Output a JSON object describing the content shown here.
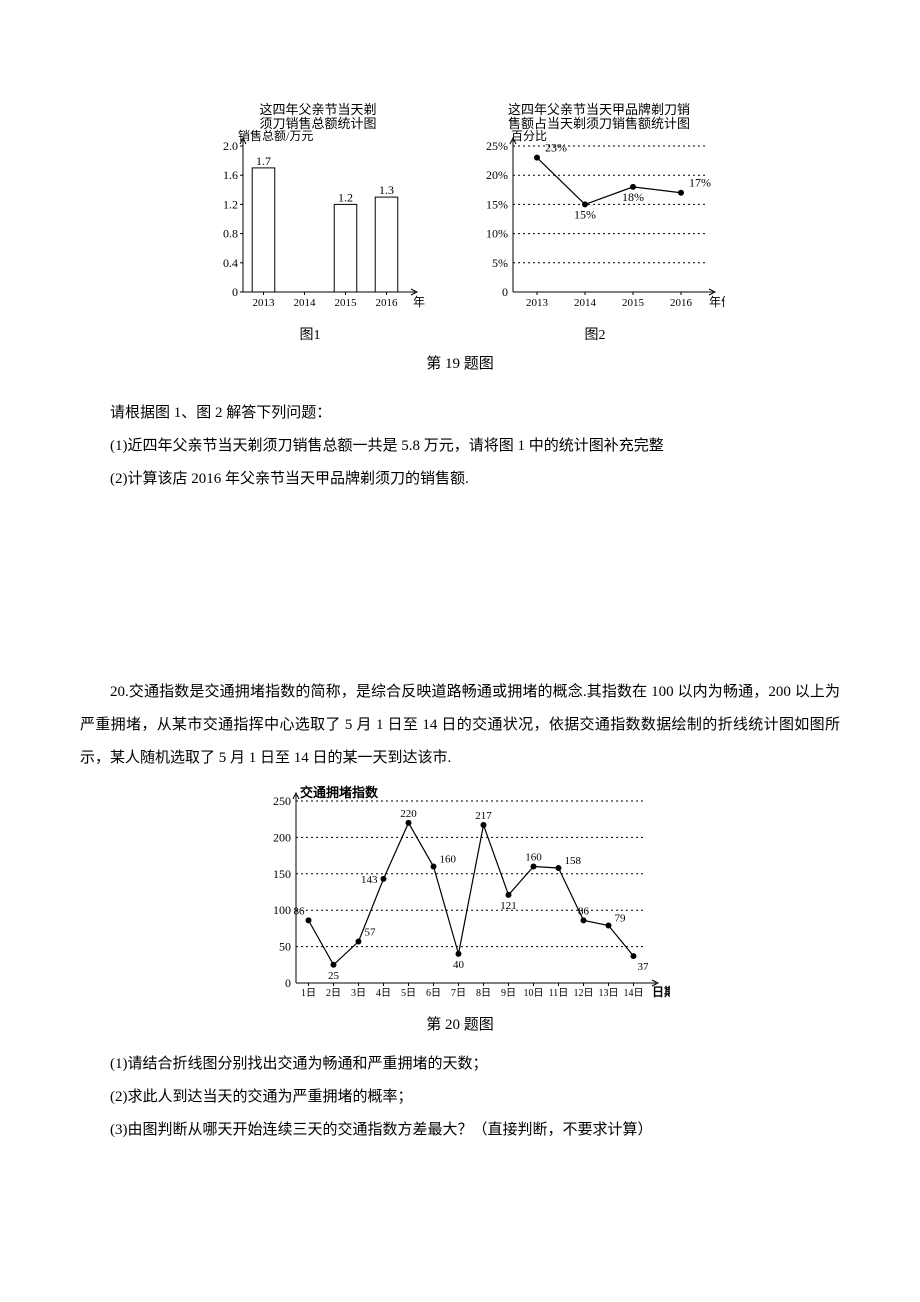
{
  "q19": {
    "barChart": {
      "title": "这四年父亲节当天剃\n须刀销售总额统计图",
      "yLabel": "销售总额/万元",
      "xLabel": "年份",
      "yTicks": [
        0,
        0.4,
        0.8,
        1.2,
        1.6,
        2.0
      ],
      "categories": [
        "2013",
        "2014",
        "2015",
        "2016"
      ],
      "values": [
        1.7,
        null,
        1.2,
        1.3
      ],
      "valueLabels": [
        "1.7",
        "",
        "1.2",
        "1.3"
      ],
      "barColor": "#ffffff",
      "barBorder": "#000000",
      "axisColor": "#000000",
      "caption": "图1"
    },
    "lineChart": {
      "title": "这四年父亲节当天甲品牌剃刀销\n售额占当天剃须刀销售额统计图",
      "yLabel": "百分比",
      "xLabel": "年份",
      "yTicks": [
        0,
        5,
        10,
        15,
        20,
        25
      ],
      "yTickLabels": [
        "0",
        "5%",
        "10%",
        "15%",
        "20%",
        "25%"
      ],
      "categories": [
        "2013",
        "2014",
        "2015",
        "2016"
      ],
      "values": [
        23,
        15,
        18,
        17
      ],
      "pointLabels": [
        "23%",
        "15%",
        "18%",
        "17%"
      ],
      "lineColor": "#000000",
      "markerFill": "#000000",
      "gridColor": "#000000",
      "caption": "图2"
    },
    "figCaption": "第 19 题图",
    "intro": "请根据图 1、图 2 解答下列问题：",
    "part1": "(1)近四年父亲节当天剃须刀销售总额一共是 5.8 万元，请将图 1 中的统计图补充完整",
    "part2": "(2)计算该店 2016 年父亲节当天甲品牌剃须刀的销售额."
  },
  "q20": {
    "intro": "20.交通指数是交通拥堵指数的简称，是综合反映道路畅通或拥堵的概念.其指数在 100 以内为畅通，200 以上为严重拥堵，从某市交通指挥中心选取了 5 月 1 日至 14 日的交通状况，依据交通指数数据绘制的折线统计图如图所示，某人随机选取了 5 月 1 日至 14 日的某一天到达该市.",
    "chart": {
      "yLabel": "交通拥堵指数",
      "xLabel": "日期",
      "yTicks": [
        0,
        50,
        100,
        150,
        200,
        250
      ],
      "categories": [
        "1日",
        "2日",
        "3日",
        "4日",
        "5日",
        "6日",
        "7日",
        "8日",
        "9日",
        "10日",
        "11日",
        "12日",
        "13日",
        "14日"
      ],
      "values": [
        86,
        25,
        57,
        143,
        220,
        160,
        40,
        217,
        121,
        160,
        158,
        86,
        79,
        37
      ],
      "pointLabels": [
        "86",
        "25",
        "57",
        "143",
        "220",
        "160",
        "40",
        "217",
        "121",
        "160",
        "158",
        "86",
        "79",
        "37"
      ],
      "lineColor": "#000000",
      "markerFill": "#000000",
      "gridColor": "#000000"
    },
    "figCaption": "第 20 题图",
    "part1": "(1)请结合折线图分别找出交通为畅通和严重拥堵的天数；",
    "part2": "(2)求此人到达当天的交通为严重拥堵的概率；",
    "part3": "(3)由图判断从哪天开始连续三天的交通指数方差最大？（直接判断，不要求计算）"
  }
}
